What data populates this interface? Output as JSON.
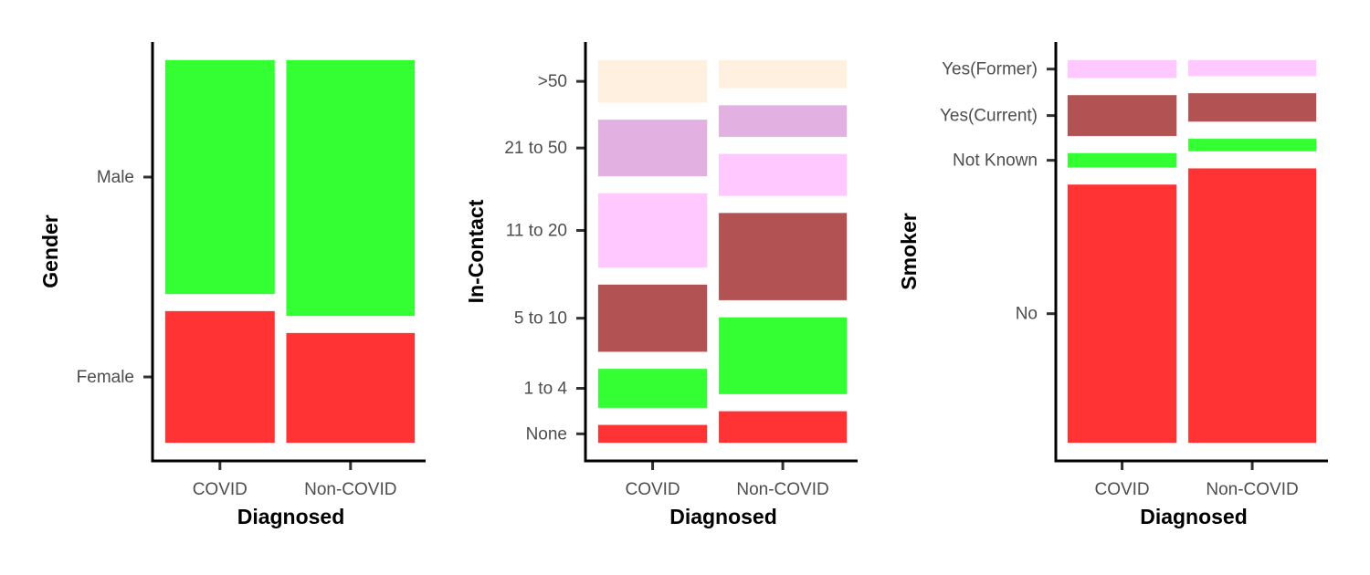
{
  "chart_data": [
    {
      "type": "mosaic",
      "xlabel": "Diagnosed",
      "ylabel": "Gender",
      "categories": [
        "COVID",
        "Non-COVID"
      ],
      "column_widths": [
        0.46,
        0.54
      ],
      "segments": [
        {
          "name": "Female",
          "color": "#ff3333",
          "values": [
            0.36,
            0.3
          ]
        },
        {
          "name": "Male",
          "color": "#33ff33",
          "values": [
            0.64,
            0.7
          ]
        }
      ]
    },
    {
      "type": "mosaic",
      "xlabel": "Diagnosed",
      "ylabel": "In-Contact",
      "categories": [
        "COVID",
        "Non-COVID"
      ],
      "column_widths": [
        0.46,
        0.54
      ],
      "segments": [
        {
          "name": "None",
          "color": "#ff3333",
          "values": [
            0.05,
            0.09
          ]
        },
        {
          "name": "1 to 4",
          "color": "#33ff33",
          "values": [
            0.11,
            0.22
          ]
        },
        {
          "name": "5 to 10",
          "color": "#b35252",
          "values": [
            0.19,
            0.25
          ]
        },
        {
          "name": "11 to 20",
          "color": "#ffc8ff",
          "values": [
            0.21,
            0.12
          ]
        },
        {
          "name": "21 to 50",
          "color": "#e2b1e2",
          "values": [
            0.16,
            0.09
          ]
        },
        {
          "name": ">50",
          "color": "#fff0df",
          "values": [
            0.12,
            0.08
          ]
        }
      ]
    },
    {
      "type": "mosaic",
      "xlabel": "Diagnosed",
      "ylabel": "Smoker",
      "categories": [
        "COVID",
        "Non-COVID"
      ],
      "column_widths": [
        0.46,
        0.54
      ],
      "segments": [
        {
          "name": "No",
          "color": "#ff3333",
          "values": [
            0.73,
            0.78
          ]
        },
        {
          "name": "Not Known",
          "color": "#33ff33",
          "values": [
            0.04,
            0.035
          ]
        },
        {
          "name": "Yes(Current)",
          "color": "#b35252",
          "values": [
            0.115,
            0.08
          ]
        },
        {
          "name": "Yes(Former)",
          "color": "#ffc8ff",
          "values": [
            0.05,
            0.045
          ]
        }
      ]
    }
  ]
}
